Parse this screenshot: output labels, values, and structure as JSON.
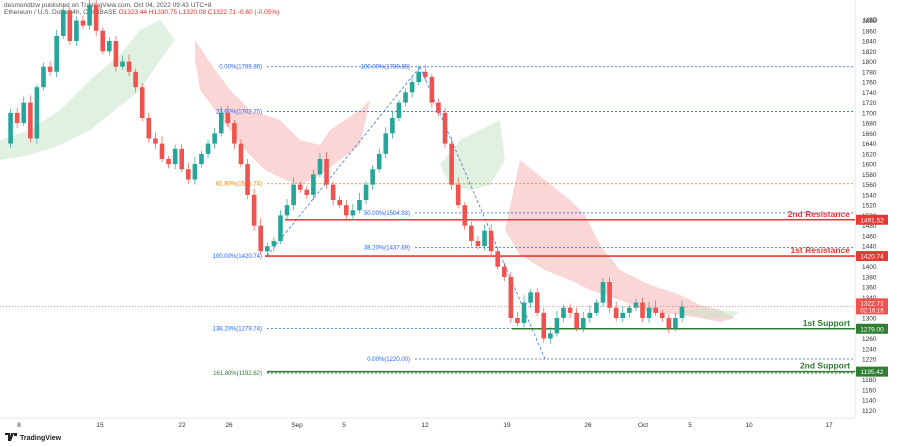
{
  "header": {
    "publisher": "desmondlzw published on TradingView.com, Oct 04, 2022 09:43 UTC+8",
    "symbol": "Ethereum / U.S. Dollar, 4h, COINBASE",
    "ohlc": "O1323.44 H1330.75 L1320.08 C1322.71 -0.60 (-0.05%)"
  },
  "currency": "USD",
  "footer_logo": "TradingView",
  "colors": {
    "up": "#26a69a",
    "down": "#ef5350",
    "fib_blue": "#2962ff",
    "fib_orange": "#f57c00",
    "resistance": "#e53935",
    "support": "#2e7d32",
    "cloud_red": "#f8c8c8",
    "cloud_green": "#c8e6c9"
  },
  "chart_data": {
    "type": "candlestick",
    "ylim": [
      1105,
      1920
    ],
    "y_ticks": [
      1880,
      1860,
      1840,
      1820,
      1800,
      1780,
      1760,
      1740,
      1720,
      1700,
      1680,
      1660,
      1640,
      1620,
      1600,
      1580,
      1560,
      1540,
      1520,
      1500,
      1480,
      1460,
      1440,
      1420,
      1400,
      1380,
      1360,
      1340,
      1320,
      1300,
      1280,
      1260,
      1240,
      1220,
      1200,
      1180,
      1160,
      1140,
      1120
    ],
    "x_ticks": [
      "8",
      "15",
      "22",
      "26",
      "Sep",
      "5",
      "12",
      "19",
      "26",
      "Oct",
      "5",
      "10",
      "17"
    ],
    "fib_levels": [
      {
        "label": "0.00%(1789.86)",
        "value": 1789.86
      },
      {
        "label": "100.00%(1789.86)",
        "value": 1789.86
      },
      {
        "label": "23.60%(1702.75)",
        "value": 1702.75
      },
      {
        "label": "61.80%(1561.74)",
        "value": 1561.74
      },
      {
        "label": "50.00%(1504.93)",
        "value": 1504.93
      },
      {
        "label": "38.20%(1437.69)",
        "value": 1437.69
      },
      {
        "label": "100.00%(1420.74)",
        "value": 1420.74
      },
      {
        "label": "138.20%(1279.74)",
        "value": 1279.74
      },
      {
        "label": "0.00%(1220.00)",
        "value": 1220.0
      },
      {
        "label": "161.80%(1192.62)",
        "value": 1192.62
      }
    ],
    "levels": [
      {
        "name": "2nd Resistance",
        "value": 1491.52,
        "price_label": "1491.52"
      },
      {
        "name": "1st Resistance",
        "value": 1420.74,
        "price_label": "1420.74"
      },
      {
        "name": "1st Support",
        "value": 1279.0,
        "price_label": "1279.00"
      },
      {
        "name": "2nd Support",
        "value": 1195.42,
        "price_label": "1195.42"
      }
    ],
    "current_price": {
      "value": 1322.71,
      "label": "1322.71",
      "countdown": "02:16:16"
    },
    "price_path": [
      1640,
      1700,
      1680,
      1720,
      1650,
      1750,
      1790,
      1780,
      1850,
      1900,
      1840,
      1880,
      1870,
      1910,
      1860,
      1820,
      1840,
      1790,
      1800,
      1780,
      1750,
      1690,
      1650,
      1640,
      1610,
      1600,
      1630,
      1590,
      1570,
      1600,
      1620,
      1640,
      1660,
      1700,
      1680,
      1640,
      1600,
      1540,
      1480,
      1430,
      1440,
      1450,
      1500,
      1520,
      1560,
      1550,
      1540,
      1580,
      1610,
      1560,
      1530,
      1520,
      1500,
      1510,
      1530,
      1560,
      1590,
      1620,
      1660,
      1690,
      1720,
      1740,
      1760,
      1780,
      1770,
      1720,
      1700,
      1640,
      1560,
      1520,
      1480,
      1450,
      1440,
      1470,
      1430,
      1400,
      1380,
      1300,
      1290,
      1330,
      1350,
      1310,
      1260,
      1270,
      1300,
      1320,
      1310,
      1280,
      1300,
      1310,
      1330,
      1370,
      1320,
      1300,
      1310,
      1320,
      1330,
      1300,
      1320,
      1310,
      1300,
      1280,
      1300,
      1322
    ]
  }
}
